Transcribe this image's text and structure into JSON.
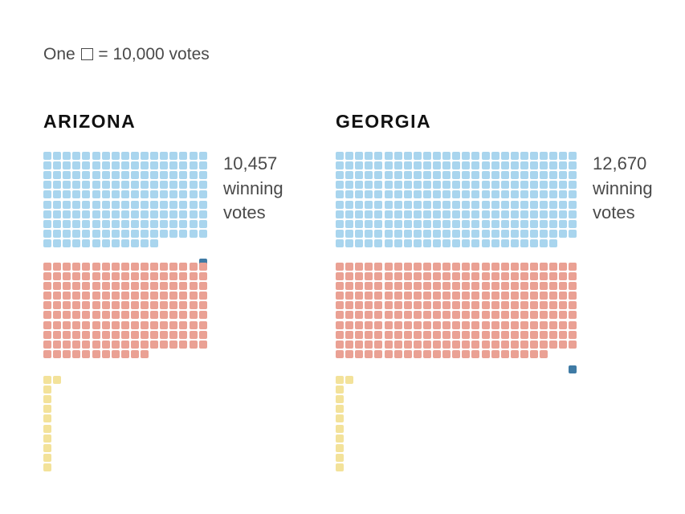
{
  "legend": {
    "prefix": "One",
    "suffix": "= 10,000 votes"
  },
  "colors": {
    "winning": "#3f7ba5",
    "blue": "#a9d5ee",
    "red": "#eaa194",
    "yellow": "#f3e29a"
  },
  "chart_data": [
    {
      "type": "waffle",
      "state": "ARIZONA",
      "unit": 10000,
      "margin_label": [
        "10,457",
        "winning",
        "votes"
      ],
      "series": [
        {
          "color": "blue",
          "squares": 165,
          "winning_square": true
        },
        {
          "color": "red",
          "squares": 164
        },
        {
          "color": "yellow",
          "squares": 11
        }
      ]
    },
    {
      "type": "waffle",
      "state": "GEORGIA",
      "unit": 10000,
      "margin_label": [
        "12,670",
        "winning",
        "votes"
      ],
      "series": [
        {
          "color": "blue",
          "squares": 248,
          "winning_square": true
        },
        {
          "color": "red",
          "squares": 247
        },
        {
          "color": "yellow",
          "squares": 11
        }
      ]
    }
  ]
}
